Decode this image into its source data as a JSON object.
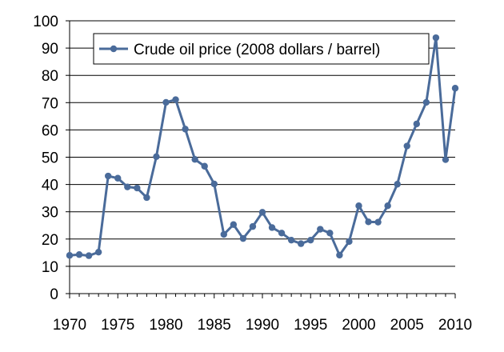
{
  "colors": {
    "series": "#4a6b9a",
    "grid": "#000000",
    "axis": "#000000",
    "legend_border": "#000000",
    "background": "#ffffff"
  },
  "chart_data": {
    "type": "line",
    "title": "",
    "xlabel": "",
    "ylabel": "",
    "xlim": [
      1970,
      2010
    ],
    "ylim": [
      0,
      100
    ],
    "x_ticks": [
      1970,
      1975,
      1980,
      1985,
      1990,
      1995,
      2000,
      2005,
      2010
    ],
    "y_ticks": [
      0,
      10,
      20,
      30,
      40,
      50,
      60,
      70,
      80,
      90,
      100
    ],
    "grid": "horizontal",
    "legend_position": "top-center",
    "series": [
      {
        "name": "Crude oil price (2008 dollars / barrel)",
        "marker": "circle",
        "x": [
          1970,
          1971,
          1972,
          1973,
          1974,
          1975,
          1976,
          1977,
          1978,
          1979,
          1980,
          1981,
          1982,
          1983,
          1984,
          1985,
          1986,
          1987,
          1988,
          1989,
          1990,
          1991,
          1992,
          1993,
          1994,
          1995,
          1996,
          1997,
          1998,
          1999,
          2000,
          2001,
          2002,
          2003,
          2004,
          2005,
          2006,
          2007,
          2008,
          2009,
          2010
        ],
        "values": [
          14,
          14.3,
          13.9,
          15.2,
          43.1,
          42.3,
          39.1,
          38.7,
          35.2,
          50.2,
          70.1,
          71.1,
          60.3,
          49.2,
          46.7,
          40.2,
          21.7,
          25.3,
          20.2,
          24.6,
          29.8,
          24.2,
          22.2,
          19.6,
          18.3,
          19.6,
          23.6,
          22.2,
          14.1,
          19.1,
          32.2,
          26.3,
          26.2,
          32.2,
          40.1,
          54.1,
          62.2,
          70.1,
          93.8,
          49.1,
          75.3
        ]
      }
    ]
  }
}
